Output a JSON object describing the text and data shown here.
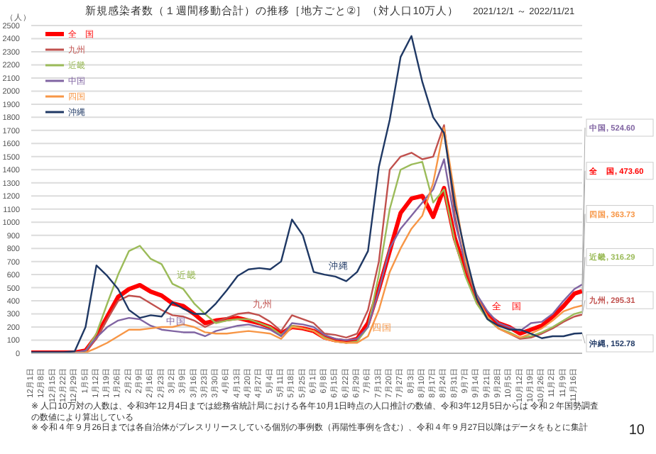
{
  "chart_data": {
    "type": "line",
    "title": "新規感染者数（１週間移動合計）の推移［地方ごと②］（対人口10万人）",
    "subtitle": "2021/12/1 ～ 2022/11/21",
    "ylabel": "（人）",
    "x": [
      "2021-12-01",
      "2021-12-08",
      "2021-12-15",
      "2021-12-22",
      "2021-12-29",
      "2022-01-05",
      "2022-01-12",
      "2022-01-19",
      "2022-01-26",
      "2022-02-02",
      "2022-02-09",
      "2022-02-16",
      "2022-02-23",
      "2022-03-02",
      "2022-03-09",
      "2022-03-16",
      "2022-03-23",
      "2022-03-30",
      "2022-04-06",
      "2022-04-13",
      "2022-04-20",
      "2022-04-27",
      "2022-05-04",
      "2022-05-11",
      "2022-05-18",
      "2022-05-25",
      "2022-06-01",
      "2022-06-08",
      "2022-06-15",
      "2022-06-22",
      "2022-06-29",
      "2022-07-06",
      "2022-07-13",
      "2022-07-20",
      "2022-07-27",
      "2022-08-03",
      "2022-08-10",
      "2022-08-17",
      "2022-08-24",
      "2022-08-31",
      "2022-09-07",
      "2022-09-14",
      "2022-09-21",
      "2022-09-28",
      "2022-10-05",
      "2022-10-12",
      "2022-10-19",
      "2022-10-26",
      "2022-11-02",
      "2022-11-09",
      "2022-11-16",
      "2022-11-21"
    ],
    "series": [
      {
        "name": "全　国",
        "color": "#ff0000",
        "values": [
          5,
          5,
          5,
          5,
          5,
          20,
          130,
          280,
          430,
          490,
          520,
          470,
          440,
          380,
          360,
          300,
          230,
          250,
          260,
          270,
          250,
          230,
          200,
          150,
          200,
          190,
          170,
          120,
          100,
          90,
          110,
          230,
          490,
          780,
          1070,
          1180,
          1200,
          1040,
          1260,
          875,
          620,
          420,
          290,
          230,
          200,
          150,
          180,
          210,
          280,
          360,
          455,
          473.6
        ]
      },
      {
        "name": "九州",
        "color": "#c0504d",
        "values": [
          null,
          null,
          5,
          5,
          5,
          15,
          110,
          260,
          400,
          440,
          430,
          380,
          330,
          290,
          280,
          250,
          200,
          240,
          270,
          300,
          310,
          290,
          240,
          170,
          290,
          260,
          230,
          150,
          140,
          120,
          150,
          330,
          700,
          1400,
          1500,
          1530,
          1480,
          1500,
          1740,
          1050,
          650,
          420,
          280,
          190,
          150,
          110,
          120,
          150,
          190,
          240,
          280,
          295.31
        ]
      },
      {
        "name": "近畿",
        "color": "#9bbb59",
        "values": [
          null,
          null,
          null,
          null,
          5,
          15,
          150,
          380,
          600,
          780,
          820,
          720,
          680,
          530,
          490,
          380,
          300,
          230,
          250,
          260,
          260,
          230,
          200,
          140,
          210,
          190,
          170,
          120,
          90,
          80,
          90,
          200,
          600,
          1100,
          1400,
          1440,
          1460,
          1150,
          1250,
          850,
          580,
          380,
          260,
          190,
          160,
          120,
          130,
          160,
          200,
          250,
          300,
          316.29
        ]
      },
      {
        "name": "中国",
        "color": "#8064a2",
        "values": [
          5,
          5,
          5,
          5,
          5,
          20,
          120,
          200,
          250,
          270,
          260,
          210,
          180,
          170,
          160,
          160,
          130,
          170,
          190,
          210,
          220,
          200,
          180,
          130,
          230,
          220,
          200,
          140,
          110,
          100,
          110,
          200,
          480,
          800,
          950,
          1050,
          1150,
          1250,
          1480,
          1000,
          680,
          450,
          320,
          230,
          200,
          170,
          230,
          240,
          300,
          400,
          490,
          524.6
        ]
      },
      {
        "name": "四国",
        "color": "#f79646",
        "values": [
          null,
          null,
          null,
          3,
          3,
          5,
          40,
          80,
          130,
          180,
          180,
          190,
          200,
          200,
          220,
          200,
          160,
          150,
          150,
          160,
          170,
          160,
          150,
          110,
          200,
          190,
          170,
          110,
          90,
          80,
          80,
          130,
          330,
          620,
          800,
          950,
          1050,
          1300,
          1720,
          1200,
          700,
          430,
          280,
          190,
          150,
          120,
          150,
          190,
          250,
          320,
          350,
          363.73
        ]
      },
      {
        "name": "沖縄",
        "color": "#1f3864",
        "values": [
          8,
          8,
          8,
          8,
          15,
          200,
          670,
          590,
          490,
          330,
          270,
          290,
          280,
          390,
          340,
          300,
          300,
          380,
          480,
          590,
          640,
          650,
          640,
          700,
          1020,
          900,
          620,
          600,
          585,
          550,
          620,
          780,
          1420,
          1780,
          2260,
          2420,
          2070,
          1800,
          1680,
          1130,
          750,
          420,
          260,
          210,
          180,
          180,
          150,
          115,
          130,
          130,
          150,
          152.78
        ]
      }
    ],
    "xlim": [
      "2021-12-01",
      "2022-11-21"
    ],
    "xticks": [
      {
        "value": "2021-12-01",
        "label": "12月1日"
      },
      {
        "value": "2021-12-08",
        "label": "12月8日"
      },
      {
        "value": "2021-12-15",
        "label": "12月15日"
      },
      {
        "value": "2021-12-22",
        "label": "12月22日"
      },
      {
        "value": "2021-12-29",
        "label": "12月29日"
      },
      {
        "value": "2022-01-05",
        "label": "1月5日"
      },
      {
        "value": "2022-01-12",
        "label": "1月12日"
      },
      {
        "value": "2022-01-19",
        "label": "1月19日"
      },
      {
        "value": "2022-01-26",
        "label": "1月26日"
      },
      {
        "value": "2022-02-02",
        "label": "2月2日"
      },
      {
        "value": "2022-02-09",
        "label": "2月9日"
      },
      {
        "value": "2022-02-16",
        "label": "2月16日"
      },
      {
        "value": "2022-02-23",
        "label": "2月23日"
      },
      {
        "value": "2022-03-02",
        "label": "3月2日"
      },
      {
        "value": "2022-03-09",
        "label": "3月9日"
      },
      {
        "value": "2022-03-16",
        "label": "3月16日"
      },
      {
        "value": "2022-03-23",
        "label": "3月23日"
      },
      {
        "value": "2022-03-30",
        "label": "3月30日"
      },
      {
        "value": "2022-04-06",
        "label": "4月6日"
      },
      {
        "value": "2022-04-13",
        "label": "4月13日"
      },
      {
        "value": "2022-04-20",
        "label": "4月20日"
      },
      {
        "value": "2022-04-27",
        "label": "4月27日"
      },
      {
        "value": "2022-05-04",
        "label": "5月4日"
      },
      {
        "value": "2022-05-11",
        "label": "5月11日"
      },
      {
        "value": "2022-05-18",
        "label": "5月18日"
      },
      {
        "value": "2022-05-25",
        "label": "5月25日"
      },
      {
        "value": "2022-06-01",
        "label": "6月1日"
      },
      {
        "value": "2022-06-08",
        "label": "6月8日"
      },
      {
        "value": "2022-06-15",
        "label": "6月15日"
      },
      {
        "value": "2022-06-22",
        "label": "6月22日"
      },
      {
        "value": "2022-06-29",
        "label": "6月29日"
      },
      {
        "value": "2022-07-06",
        "label": "7月6日"
      },
      {
        "value": "2022-07-13",
        "label": "7月13日"
      },
      {
        "value": "2022-07-20",
        "label": "7月20日"
      },
      {
        "value": "2022-07-27",
        "label": "7月27日"
      },
      {
        "value": "2022-08-03",
        "label": "8月3日"
      },
      {
        "value": "2022-08-10",
        "label": "8月10日"
      },
      {
        "value": "2022-08-17",
        "label": "8月17日"
      },
      {
        "value": "2022-08-24",
        "label": "8月24日"
      },
      {
        "value": "2022-08-31",
        "label": "8月31日"
      },
      {
        "value": "2022-09-07",
        "label": "9月7日"
      },
      {
        "value": "2022-09-14",
        "label": "9月14日"
      },
      {
        "value": "2022-09-21",
        "label": "9月21日"
      },
      {
        "value": "2022-09-28",
        "label": "9月28日"
      },
      {
        "value": "2022-10-05",
        "label": "10月5日"
      },
      {
        "value": "2022-10-12",
        "label": "10月12日"
      },
      {
        "value": "2022-10-19",
        "label": "10月19日"
      },
      {
        "value": "2022-10-26",
        "label": "10月26日"
      },
      {
        "value": "2022-11-02",
        "label": "11月2日"
      },
      {
        "value": "2022-11-09",
        "label": "11月9日"
      },
      {
        "value": "2022-11-16",
        "label": "11月16日"
      }
    ],
    "ylim": [
      0,
      2500
    ],
    "yticks": [
      0,
      100,
      200,
      300,
      400,
      500,
      600,
      700,
      800,
      900,
      1000,
      1100,
      1200,
      1300,
      1400,
      1500,
      1600,
      1700,
      1800,
      1900,
      2000,
      2100,
      2200,
      2300,
      2400,
      2500
    ],
    "grid": "y",
    "legend": "top left",
    "marker": "none",
    "line_style": "solid",
    "annotations": [
      {
        "text": "近畿",
        "x": "2022-03-02",
        "y": 530
      },
      {
        "text": "九州",
        "x": "2022-04-20",
        "y": 310
      },
      {
        "text": "中国",
        "x": "2022-02-23",
        "y": 180
      },
      {
        "text": "沖縄",
        "x": "2022-06-08",
        "y": 600
      },
      {
        "text": "全　国",
        "x": "2022-09-21",
        "y": 290
      },
      {
        "text": "四国",
        "x": "2022-07-06",
        "y": 130
      },
      {
        "text": "中国, 524.60",
        "x": "2022-11-21",
        "y": 524.6
      },
      {
        "text": "全　国, 473.60",
        "x": "2022-11-21",
        "y": 473.6
      },
      {
        "text": "四国, 363.73",
        "x": "2022-11-21",
        "y": 363.73
      },
      {
        "text": "近畿, 316.29",
        "x": "2022-11-21",
        "y": 316.29
      },
      {
        "text": "九州, 295.31",
        "x": "2022-11-21",
        "y": 295.31
      },
      {
        "text": "沖縄, 152.78",
        "x": "2022-11-21",
        "y": 152.78
      },
      "※ 人口10万対の人数は、令和3年12月4日までは総務省統計局における各年10月1日時点の人口推計の数値、令和3年12月5日からは 令和２年国勢調査の数値により算出している",
      "※ 令和４年９月26日までは各自治体がプレスリリースしている個別の事例数（再陽性事例を含む）、令和４年９月27日以降はデータをもとに集計",
      "10"
    ]
  }
}
